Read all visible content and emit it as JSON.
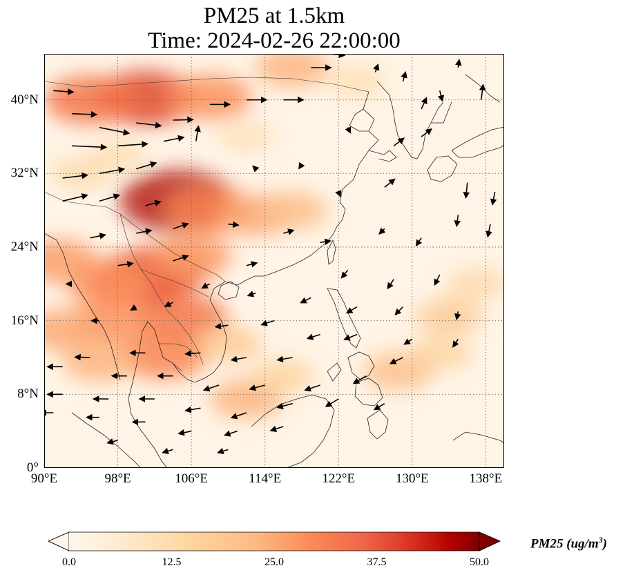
{
  "title": {
    "line1": "PM25 at 1.5km",
    "line2": "Time: 2024-02-26 22:00:00"
  },
  "map": {
    "extent": {
      "lon_min": 90,
      "lon_max": 140,
      "lat_min": 0,
      "lat_max": 45
    },
    "y_ticks": [
      {
        "lat": 40,
        "label": "40°N"
      },
      {
        "lat": 32,
        "label": "32°N"
      },
      {
        "lat": 24,
        "label": "24°N"
      },
      {
        "lat": 16,
        "label": "16°N"
      },
      {
        "lat": 8,
        "label": "8°N"
      },
      {
        "lat": 0,
        "label": "0°"
      }
    ],
    "x_ticks": [
      {
        "lon": 90,
        "label": "90°E"
      },
      {
        "lon": 98,
        "label": "98°E"
      },
      {
        "lon": 106,
        "label": "106°E"
      },
      {
        "lon": 114,
        "label": "114°E"
      },
      {
        "lon": 122,
        "label": "122°E"
      },
      {
        "lon": 130,
        "label": "130°E"
      },
      {
        "lon": 138,
        "label": "138°E"
      }
    ],
    "grid": "dotted"
  },
  "colorbar": {
    "colormap": "OrRd",
    "min": 0.0,
    "max": 50.0,
    "tick_labels": [
      "0.0",
      "12.5",
      "25.0",
      "37.5",
      "50.0"
    ],
    "label_main": "PM25 (ug/m",
    "label_sup": "3",
    "label_end": ")",
    "extend": "both"
  },
  "colors": {
    "low": "#fff7ec",
    "mid": "#fdbb84",
    "high": "#d7301f",
    "max": "#7f0000"
  },
  "plumes": [
    {
      "lon": 101,
      "lat": 40.2,
      "value": 34
    },
    {
      "lon": 95,
      "lat": 40.0,
      "value": 28
    },
    {
      "lon": 108,
      "lat": 40.3,
      "value": 24
    },
    {
      "lon": 117,
      "lat": 43.5,
      "value": 18
    },
    {
      "lon": 104.5,
      "lat": 29.0,
      "value": 42
    },
    {
      "lon": 108,
      "lat": 28.0,
      "value": 26
    },
    {
      "lon": 113,
      "lat": 27.5,
      "value": 20
    },
    {
      "lon": 117,
      "lat": 28.0,
      "value": 16
    },
    {
      "lon": 100.5,
      "lat": 20.5,
      "value": 34
    },
    {
      "lon": 103,
      "lat": 21.5,
      "value": 30
    },
    {
      "lon": 97,
      "lat": 20.0,
      "value": 24
    },
    {
      "lon": 106,
      "lat": 23.0,
      "value": 22
    },
    {
      "lon": 105,
      "lat": 16.2,
      "value": 28
    },
    {
      "lon": 103,
      "lat": 12.2,
      "value": 26
    },
    {
      "lon": 97.5,
      "lat": 16.0,
      "value": 24
    },
    {
      "lon": 92,
      "lat": 15.0,
      "value": 20
    },
    {
      "lon": 91.5,
      "lat": 22.5,
      "value": 22
    },
    {
      "lon": 96,
      "lat": 11.5,
      "value": 18
    },
    {
      "lon": 110,
      "lat": 13.5,
      "value": 14
    },
    {
      "lon": 112,
      "lat": 7.5,
      "value": 18
    },
    {
      "lon": 116,
      "lat": 10.0,
      "value": 12
    },
    {
      "lon": 128.5,
      "lat": 10.5,
      "value": 16
    },
    {
      "lon": 134,
      "lat": 16.5,
      "value": 14
    },
    {
      "lon": 133,
      "lat": 12.5,
      "value": 12
    },
    {
      "lon": 137,
      "lat": 20.0,
      "value": 10
    },
    {
      "lon": 94,
      "lat": 32.0,
      "value": 10
    },
    {
      "lon": 98,
      "lat": 34.0,
      "value": 9
    },
    {
      "lon": 112,
      "lat": 36.0,
      "value": 8
    },
    {
      "lon": 124,
      "lat": 42.0,
      "value": 9
    }
  ],
  "wind_vectors": [
    {
      "lon": 91,
      "lat": 41.0,
      "u": 4,
      "v": -0.3
    },
    {
      "lon": 93,
      "lat": 38.5,
      "u": 5,
      "v": -0.2
    },
    {
      "lon": 96,
      "lat": 37.0,
      "u": 6,
      "v": -1.2
    },
    {
      "lon": 100,
      "lat": 37.5,
      "u": 5,
      "v": -0.6
    },
    {
      "lon": 104,
      "lat": 37.8,
      "u": 4,
      "v": 0.1
    },
    {
      "lon": 108,
      "lat": 39.5,
      "u": 4,
      "v": 0.0
    },
    {
      "lon": 112,
      "lat": 40.0,
      "u": 4,
      "v": 0.0
    },
    {
      "lon": 116,
      "lat": 40.0,
      "u": 4,
      "v": 0.0
    },
    {
      "lon": 119,
      "lat": 43.5,
      "u": 4,
      "v": 0.0
    },
    {
      "lon": 121,
      "lat": 45.0,
      "u": 3,
      "v": -0.3
    },
    {
      "lon": 93,
      "lat": 35.0,
      "u": 7,
      "v": -0.3
    },
    {
      "lon": 98,
      "lat": 35.0,
      "u": 6,
      "v": 0.4
    },
    {
      "lon": 103,
      "lat": 35.5,
      "u": 4,
      "v": 0.8
    },
    {
      "lon": 106.5,
      "lat": 35.5,
      "u": 0.5,
      "v": 3.0
    },
    {
      "lon": 92,
      "lat": 31.5,
      "u": 5,
      "v": 0.6
    },
    {
      "lon": 96,
      "lat": 32.0,
      "u": 5,
      "v": 0.9
    },
    {
      "lon": 100,
      "lat": 32.5,
      "u": 4,
      "v": 1.2
    },
    {
      "lon": 92,
      "lat": 29.0,
      "u": 5,
      "v": 1.2
    },
    {
      "lon": 96,
      "lat": 29.0,
      "u": 4,
      "v": 1.2
    },
    {
      "lon": 101,
      "lat": 28.5,
      "u": 3,
      "v": 0.8
    },
    {
      "lon": 104,
      "lat": 26.0,
      "u": 3,
      "v": 1.0
    },
    {
      "lon": 100,
      "lat": 25.5,
      "u": 3,
      "v": 0.6
    },
    {
      "lon": 95,
      "lat": 25.0,
      "u": 3,
      "v": 0.6
    },
    {
      "lon": 104,
      "lat": 22.5,
      "u": 3,
      "v": 1.0
    },
    {
      "lon": 98,
      "lat": 22.0,
      "u": 3,
      "v": 0.4
    },
    {
      "lon": 110,
      "lat": 26.5,
      "u": 2,
      "v": -0.2
    },
    {
      "lon": 116,
      "lat": 25.5,
      "u": 2,
      "v": 0.6
    },
    {
      "lon": 112,
      "lat": 22.0,
      "u": 2,
      "v": 0.5
    },
    {
      "lon": 120,
      "lat": 24.5,
      "u": 2,
      "v": 0.3
    },
    {
      "lon": 127,
      "lat": 30.5,
      "u": 2,
      "v": 1.6
    },
    {
      "lon": 128,
      "lat": 35.0,
      "u": 2,
      "v": 1.5
    },
    {
      "lon": 131,
      "lat": 36.0,
      "u": 2,
      "v": 1.5
    },
    {
      "lon": 131,
      "lat": 39.0,
      "u": 1,
      "v": 2.2
    },
    {
      "lon": 133,
      "lat": 41.0,
      "u": 0.5,
      "v": -2.0
    },
    {
      "lon": 137.5,
      "lat": 40.0,
      "u": 0.4,
      "v": 3.0
    },
    {
      "lon": 136,
      "lat": 31.0,
      "u": -0.3,
      "v": -3.0
    },
    {
      "lon": 139,
      "lat": 30.0,
      "u": -0.5,
      "v": -2.5
    },
    {
      "lon": 138.5,
      "lat": 26.5,
      "u": -0.5,
      "v": -2.5
    },
    {
      "lon": 135,
      "lat": 27.5,
      "u": -0.3,
      "v": -2.2
    },
    {
      "lon": 131,
      "lat": 25.0,
      "u": -1.0,
      "v": -1.5
    },
    {
      "lon": 127,
      "lat": 26.0,
      "u": -1.0,
      "v": -1.0
    },
    {
      "lon": 123,
      "lat": 21.5,
      "u": -1.2,
      "v": -1.5
    },
    {
      "lon": 128,
      "lat": 20.5,
      "u": -1.2,
      "v": -1.8
    },
    {
      "lon": 133,
      "lat": 21.0,
      "u": -1.0,
      "v": -2.0
    },
    {
      "lon": 119,
      "lat": 18.5,
      "u": -2.0,
      "v": -1.0
    },
    {
      "lon": 124,
      "lat": 17.5,
      "u": -2.0,
      "v": -1.2
    },
    {
      "lon": 129,
      "lat": 17.5,
      "u": -1.5,
      "v": -1.5
    },
    {
      "lon": 135,
      "lat": 17.0,
      "u": -0.3,
      "v": -1.5
    },
    {
      "lon": 115,
      "lat": 16.0,
      "u": -2.5,
      "v": -0.8
    },
    {
      "lon": 110,
      "lat": 15.5,
      "u": -2.5,
      "v": -0.3
    },
    {
      "lon": 120,
      "lat": 14.5,
      "u": -2.5,
      "v": -0.8
    },
    {
      "lon": 124,
      "lat": 14.5,
      "u": -2.5,
      "v": -1.0
    },
    {
      "lon": 130,
      "lat": 14.0,
      "u": -1.5,
      "v": -1.0
    },
    {
      "lon": 135,
      "lat": 14.0,
      "u": -1.0,
      "v": -1.5
    },
    {
      "lon": 107,
      "lat": 12.5,
      "u": -3.0,
      "v": -0.2
    },
    {
      "lon": 112,
      "lat": 12.0,
      "u": -3.0,
      "v": -0.5
    },
    {
      "lon": 117,
      "lat": 12.0,
      "u": -3.0,
      "v": -0.5
    },
    {
      "lon": 101,
      "lat": 12.5,
      "u": -3.0,
      "v": 0.0
    },
    {
      "lon": 95,
      "lat": 12.0,
      "u": -3.0,
      "v": 0.1
    },
    {
      "lon": 92,
      "lat": 11.0,
      "u": -3.0,
      "v": 0.0
    },
    {
      "lon": 99,
      "lat": 10.0,
      "u": -3.0,
      "v": 0.0
    },
    {
      "lon": 104,
      "lat": 10.0,
      "u": -3.0,
      "v": 0.0
    },
    {
      "lon": 109,
      "lat": 9.0,
      "u": -3.0,
      "v": -1.0
    },
    {
      "lon": 114,
      "lat": 9.0,
      "u": -3.0,
      "v": -0.8
    },
    {
      "lon": 120,
      "lat": 9.0,
      "u": -3.0,
      "v": -1.0
    },
    {
      "lon": 125,
      "lat": 10.0,
      "u": -2.5,
      "v": -1.5
    },
    {
      "lon": 129,
      "lat": 12.0,
      "u": -2.5,
      "v": -1.2
    },
    {
      "lon": 92,
      "lat": 8.0,
      "u": -3.0,
      "v": 0.0
    },
    {
      "lon": 97,
      "lat": 7.5,
      "u": -3.0,
      "v": 0.0
    },
    {
      "lon": 102,
      "lat": 7.5,
      "u": -3.0,
      "v": 0.0
    },
    {
      "lon": 107,
      "lat": 6.5,
      "u": -3.0,
      "v": -0.5
    },
    {
      "lon": 112,
      "lat": 6.0,
      "u": -3.0,
      "v": -1.0
    },
    {
      "lon": 117,
      "lat": 7.0,
      "u": -3.0,
      "v": -0.8
    },
    {
      "lon": 122,
      "lat": 7.5,
      "u": -2.5,
      "v": -1.5
    },
    {
      "lon": 127,
      "lat": 7.0,
      "u": -2.0,
      "v": -1.2
    },
    {
      "lon": 91,
      "lat": 6.0,
      "u": -2.5,
      "v": 0.0
    },
    {
      "lon": 96,
      "lat": 5.5,
      "u": -2.5,
      "v": 0.0
    },
    {
      "lon": 101,
      "lat": 5.0,
      "u": -2.5,
      "v": 0.0
    },
    {
      "lon": 106,
      "lat": 4.0,
      "u": -2.5,
      "v": -0.5
    },
    {
      "lon": 111,
      "lat": 4.0,
      "u": -2.5,
      "v": -0.8
    },
    {
      "lon": 116,
      "lat": 4.5,
      "u": -2.5,
      "v": -0.8
    },
    {
      "lon": 98,
      "lat": 3.0,
      "u": -2.0,
      "v": -0.5
    },
    {
      "lon": 104,
      "lat": 2.0,
      "u": -2.0,
      "v": -0.6
    },
    {
      "lon": 110,
      "lat": 2.0,
      "u": -2.0,
      "v": -0.6
    },
    {
      "lon": 96,
      "lat": 16.0,
      "u": -1.5,
      "v": 0.0
    },
    {
      "lon": 100,
      "lat": 17.5,
      "u": -1.0,
      "v": -0.6
    },
    {
      "lon": 104,
      "lat": 18.0,
      "u": -1.5,
      "v": -0.8
    },
    {
      "lon": 108,
      "lat": 20.0,
      "u": -1.5,
      "v": -0.8
    },
    {
      "lon": 93,
      "lat": 20.0,
      "u": -1.0,
      "v": 0.0
    },
    {
      "lon": 113,
      "lat": 19.0,
      "u": -1.5,
      "v": -0.5
    },
    {
      "lon": 123,
      "lat": 37.0,
      "u": 0.5,
      "v": -1.0
    },
    {
      "lon": 118,
      "lat": 33.0,
      "u": -0.5,
      "v": -0.8
    },
    {
      "lon": 113,
      "lat": 32.5,
      "u": -0.5,
      "v": 0.5
    },
    {
      "lon": 122,
      "lat": 30.0,
      "u": 0.3,
      "v": -0.8
    },
    {
      "lon": 126,
      "lat": 43.0,
      "u": 0.5,
      "v": 1.5
    },
    {
      "lon": 129,
      "lat": 42.0,
      "u": 0.5,
      "v": 1.8
    },
    {
      "lon": 135,
      "lat": 43.5,
      "u": 0.2,
      "v": 1.5
    }
  ]
}
